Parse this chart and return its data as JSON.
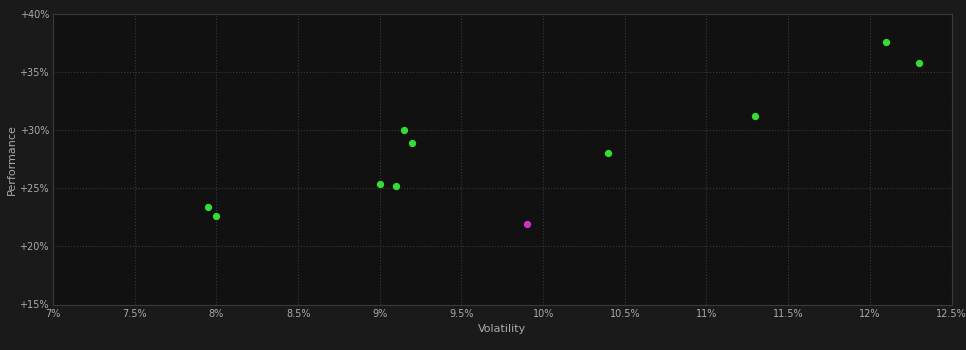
{
  "background_color": "#1a1a1a",
  "plot_bg_color": "#111111",
  "grid_color": "#3a3a3a",
  "text_color": "#aaaaaa",
  "xlabel": "Volatility",
  "ylabel": "Performance",
  "xlim": [
    0.07,
    0.125
  ],
  "ylim": [
    0.15,
    0.4
  ],
  "xticks": [
    0.07,
    0.075,
    0.08,
    0.085,
    0.09,
    0.095,
    0.1,
    0.105,
    0.11,
    0.115,
    0.12,
    0.125
  ],
  "yticks": [
    0.15,
    0.2,
    0.25,
    0.3,
    0.35,
    0.4
  ],
  "xtick_labels": [
    "7%",
    "7.5%",
    "8%",
    "8.5%",
    "9%",
    "9.5%",
    "10%",
    "10.5%",
    "11%",
    "11.5%",
    "12%",
    "12.5%"
  ],
  "ytick_labels": [
    "+15%",
    "+20%",
    "+25%",
    "+30%",
    "+35%",
    "+40%"
  ],
  "green_points": [
    [
      0.0795,
      0.234
    ],
    [
      0.08,
      0.226
    ],
    [
      0.09,
      0.254
    ],
    [
      0.091,
      0.252
    ],
    [
      0.0915,
      0.3
    ],
    [
      0.092,
      0.289
    ],
    [
      0.104,
      0.28
    ],
    [
      0.113,
      0.312
    ],
    [
      0.121,
      0.376
    ],
    [
      0.123,
      0.358
    ]
  ],
  "magenta_points": [
    [
      0.099,
      0.219
    ]
  ],
  "green_color": "#33dd33",
  "magenta_color": "#cc33cc",
  "point_size": 18
}
